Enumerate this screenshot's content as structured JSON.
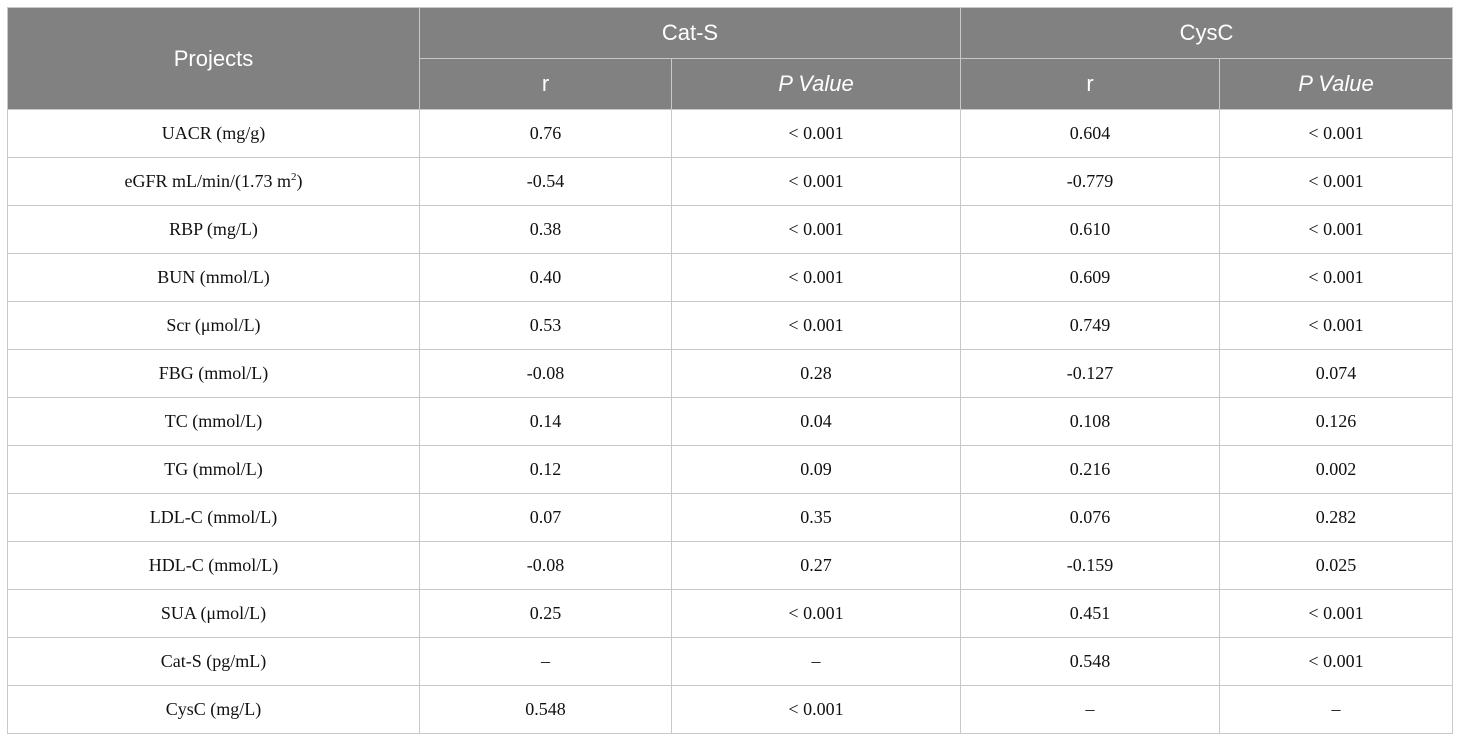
{
  "header": {
    "projects_label": "Projects",
    "groups": [
      "Cat-S",
      "CysC"
    ],
    "subcolumns": [
      "r",
      "P Value",
      "r",
      "P Value"
    ]
  },
  "rows": [
    {
      "project": "UACR (mg/g)",
      "cats_r": "0.76",
      "cats_p": "< 0.001",
      "cysc_r": "0.604",
      "cysc_p": "< 0.001"
    },
    {
      "project": "eGFR mL/min/(1.73 m",
      "project_sup": "2",
      "project_tail": ")",
      "cats_r": "-0.54",
      "cats_p": "< 0.001",
      "cysc_r": "-0.779",
      "cysc_p": "< 0.001"
    },
    {
      "project": "RBP (mg/L)",
      "cats_r": "0.38",
      "cats_p": "< 0.001",
      "cysc_r": "0.610",
      "cysc_p": "< 0.001"
    },
    {
      "project": "BUN (mmol/L)",
      "cats_r": "0.40",
      "cats_p": "< 0.001",
      "cysc_r": "0.609",
      "cysc_p": "< 0.001"
    },
    {
      "project": "Scr (μmol/L)",
      "cats_r": "0.53",
      "cats_p": "< 0.001",
      "cysc_r": "0.749",
      "cysc_p": "< 0.001"
    },
    {
      "project": "FBG (mmol/L)",
      "cats_r": "-0.08",
      "cats_p": "0.28",
      "cysc_r": "-0.127",
      "cysc_p": "0.074"
    },
    {
      "project": "TC (mmol/L)",
      "cats_r": "0.14",
      "cats_p": "0.04",
      "cysc_r": "0.108",
      "cysc_p": "0.126"
    },
    {
      "project": "TG (mmol/L)",
      "cats_r": "0.12",
      "cats_p": "0.09",
      "cysc_r": "0.216",
      "cysc_p": "0.002"
    },
    {
      "project": "LDL-C (mmol/L)",
      "cats_r": "0.07",
      "cats_p": "0.35",
      "cysc_r": "0.076",
      "cysc_p": "0.282"
    },
    {
      "project": "HDL-C (mmol/L)",
      "cats_r": "-0.08",
      "cats_p": "0.27",
      "cysc_r": "-0.159",
      "cysc_p": "0.025"
    },
    {
      "project": "SUA (μmol/L)",
      "cats_r": "0.25",
      "cats_p": "< 0.001",
      "cysc_r": "0.451",
      "cysc_p": "< 0.001"
    },
    {
      "project": "Cat-S (pg/mL)",
      "cats_r": "–",
      "cats_p": "–",
      "cysc_r": "0.548",
      "cysc_p": "< 0.001"
    },
    {
      "project": "CysC (mg/L)",
      "cats_r": "0.548",
      "cats_p": "< 0.001",
      "cysc_r": "–",
      "cysc_p": "–"
    }
  ]
}
